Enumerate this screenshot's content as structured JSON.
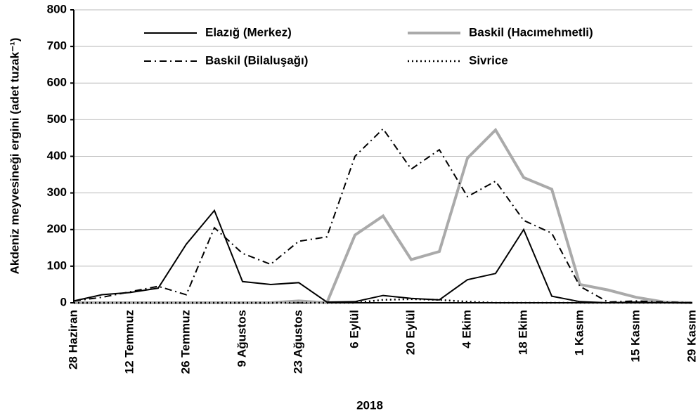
{
  "chart_data": {
    "type": "line",
    "ylabel": "Akdeniz meyvesineği ergini (adet tuzak⁻¹)",
    "xlabel": "2018",
    "categories": [
      "28 Haziran",
      null,
      "12 Temmuz",
      null,
      "26 Temmuz",
      null,
      "9 Ağustos",
      null,
      "23 Ağustos",
      null,
      "6 Eylül",
      null,
      "20 Eylül",
      null,
      "4 Ekim",
      null,
      "18 Ekim",
      null,
      "1 Kasım",
      null,
      "15 Kasım",
      null,
      "29 Kasım"
    ],
    "series": [
      {
        "name": "Elazığ (Merkez)",
        "color": "#000000",
        "dash": "none",
        "values": [
          5,
          22,
          28,
          40,
          160,
          252,
          58,
          50,
          55,
          2,
          3,
          20,
          12,
          8,
          63,
          80,
          200,
          18,
          3,
          0,
          2,
          0,
          0
        ]
      },
      {
        "name": "Baskil (Hacımehmetli)",
        "color": "#aaaaaa",
        "dash": "none",
        "values": [
          0,
          0,
          0,
          0,
          0,
          0,
          0,
          0,
          5,
          0,
          185,
          237,
          118,
          140,
          395,
          472,
          342,
          310,
          50,
          35,
          15,
          2,
          0
        ]
      },
      {
        "name": "Baskil (Bilaluşağı)",
        "color": "#000000",
        "dash": "10 5 2 5",
        "values": [
          5,
          15,
          30,
          45,
          22,
          205,
          135,
          105,
          168,
          180,
          400,
          475,
          365,
          418,
          290,
          332,
          225,
          190,
          45,
          2,
          5,
          2,
          0
        ]
      },
      {
        "name": "Sivrice",
        "color": "#000000",
        "dash": "2 4",
        "values": [
          0,
          0,
          0,
          0,
          0,
          0,
          0,
          0,
          0,
          0,
          0,
          8,
          10,
          8,
          3,
          0,
          0,
          0,
          0,
          0,
          0,
          0,
          0
        ]
      }
    ],
    "ylim": [
      0,
      800
    ],
    "yticks": [
      0,
      100,
      200,
      300,
      400,
      500,
      600,
      700,
      800
    ],
    "grid": true
  }
}
